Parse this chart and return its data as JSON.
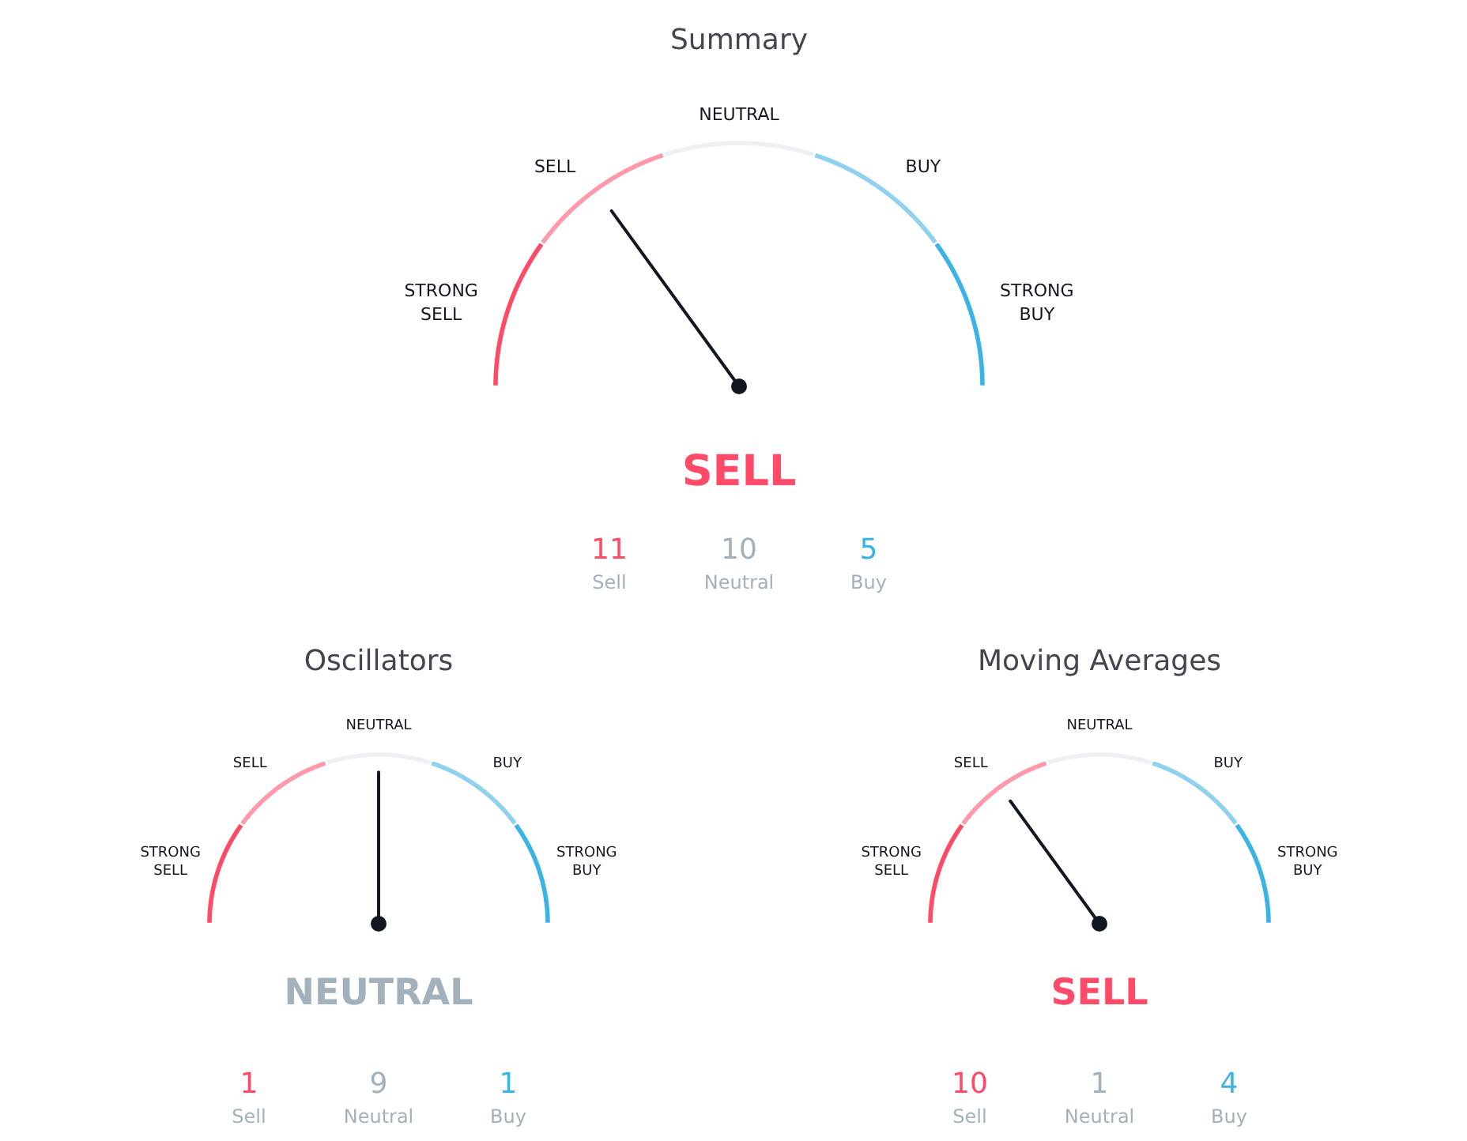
{
  "chart_data": [
    {
      "type": "donut",
      "title": "Summary",
      "categories": [
        "STRONG SELL",
        "SELL",
        "NEUTRAL",
        "BUY",
        "STRONG BUY"
      ],
      "values": [
        20,
        20,
        20,
        20,
        20
      ],
      "colors": [
        "#ff4a68",
        "#ff99ab",
        "#eef0f4",
        "#8fd1ee",
        "#3bb3e4"
      ],
      "needle": "SELL",
      "annotations": [
        "SELL"
      ]
    },
    {
      "type": "other",
      "categories": [
        "Sell",
        "Neutral",
        "Buy"
      ],
      "values": [
        11,
        10,
        5
      ],
      "colors": [
        "#ff4a68",
        "#a3b1bd",
        "#3bb3e4"
      ],
      "data_labels": true
    },
    {
      "type": "donut",
      "title": "Oscillators",
      "categories": [
        "STRONG SELL",
        "SELL",
        "NEUTRAL",
        "BUY",
        "STRONG BUY"
      ],
      "values": [
        20,
        20,
        20,
        20,
        20
      ],
      "colors": [
        "#ff4a68",
        "#ff99ab",
        "#eef0f4",
        "#8fd1ee",
        "#3bb3e4"
      ],
      "needle": "NEUTRAL",
      "annotations": [
        "NEUTRAL"
      ]
    },
    {
      "type": "other",
      "categories": [
        "Sell",
        "Neutral",
        "Buy"
      ],
      "values": [
        1,
        9,
        1
      ],
      "colors": [
        "#ff4a68",
        "#a3b1bd",
        "#3bb3e4"
      ],
      "data_labels": true
    },
    {
      "type": "donut",
      "title": "Moving Averages",
      "categories": [
        "STRONG SELL",
        "SELL",
        "NEUTRAL",
        "BUY",
        "STRONG BUY"
      ],
      "values": [
        20,
        20,
        20,
        20,
        20
      ],
      "colors": [
        "#ff4a68",
        "#ff99ab",
        "#eef0f4",
        "#8fd1ee",
        "#3bb3e4"
      ],
      "needle": "SELL",
      "annotations": [
        "SELL"
      ]
    },
    {
      "type": "other",
      "categories": [
        "Sell",
        "Neutral",
        "Buy"
      ],
      "values": [
        10,
        1,
        4
      ],
      "colors": [
        "#ff4a68",
        "#a3b1bd",
        "#3bb3e4"
      ],
      "data_labels": true
    }
  ]
}
